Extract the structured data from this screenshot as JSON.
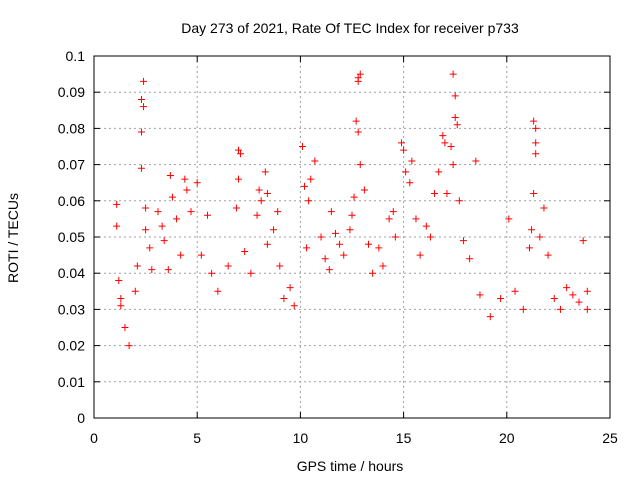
{
  "chart_data": {
    "type": "scatter",
    "title": "Day 273 of 2021, Rate Of TEC Index for receiver p733",
    "xlabel": "GPS time / hours",
    "ylabel": "ROTI / TECUs",
    "xlim": [
      0,
      25
    ],
    "ylim": [
      0,
      0.1
    ],
    "xticks": [
      "0",
      "5",
      "10",
      "15",
      "20",
      "25"
    ],
    "yticks": [
      "0",
      "0.01",
      "0.02",
      "0.03",
      "0.04",
      "0.05",
      "0.06",
      "0.07",
      "0.08",
      "0.09",
      "0.1"
    ],
    "grid": true,
    "marker": "+",
    "series": [
      {
        "color": "#ff0000",
        "points": [
          [
            1.1,
            0.059
          ],
          [
            1.1,
            0.053
          ],
          [
            1.2,
            0.038
          ],
          [
            1.3,
            0.033
          ],
          [
            1.3,
            0.031
          ],
          [
            1.5,
            0.025
          ],
          [
            1.7,
            0.02
          ],
          [
            2.0,
            0.035
          ],
          [
            2.1,
            0.042
          ],
          [
            2.3,
            0.079
          ],
          [
            2.3,
            0.088
          ],
          [
            2.4,
            0.093
          ],
          [
            2.4,
            0.086
          ],
          [
            2.3,
            0.069
          ],
          [
            2.5,
            0.058
          ],
          [
            2.5,
            0.052
          ],
          [
            2.7,
            0.047
          ],
          [
            2.8,
            0.041
          ],
          [
            3.1,
            0.057
          ],
          [
            3.3,
            0.053
          ],
          [
            3.4,
            0.049
          ],
          [
            3.6,
            0.041
          ],
          [
            3.7,
            0.067
          ],
          [
            3.8,
            0.061
          ],
          [
            4.0,
            0.055
          ],
          [
            4.2,
            0.045
          ],
          [
            4.4,
            0.066
          ],
          [
            4.5,
            0.063
          ],
          [
            4.7,
            0.057
          ],
          [
            5.0,
            0.065
          ],
          [
            5.2,
            0.045
          ],
          [
            5.5,
            0.056
          ],
          [
            5.7,
            0.04
          ],
          [
            6.0,
            0.035
          ],
          [
            6.5,
            0.042
          ],
          [
            6.9,
            0.058
          ],
          [
            7.0,
            0.066
          ],
          [
            7.0,
            0.074
          ],
          [
            7.1,
            0.073
          ],
          [
            7.3,
            0.046
          ],
          [
            7.6,
            0.04
          ],
          [
            7.9,
            0.056
          ],
          [
            8.0,
            0.063
          ],
          [
            8.1,
            0.06
          ],
          [
            8.3,
            0.068
          ],
          [
            8.4,
            0.062
          ],
          [
            8.4,
            0.048
          ],
          [
            8.7,
            0.052
          ],
          [
            8.9,
            0.057
          ],
          [
            9.0,
            0.042
          ],
          [
            9.2,
            0.033
          ],
          [
            9.5,
            0.036
          ],
          [
            9.7,
            0.031
          ],
          [
            10.1,
            0.075
          ],
          [
            10.2,
            0.064
          ],
          [
            10.4,
            0.06
          ],
          [
            10.5,
            0.066
          ],
          [
            10.7,
            0.071
          ],
          [
            10.3,
            0.047
          ],
          [
            11.0,
            0.05
          ],
          [
            11.2,
            0.044
          ],
          [
            11.4,
            0.041
          ],
          [
            11.5,
            0.057
          ],
          [
            11.7,
            0.051
          ],
          [
            11.9,
            0.048
          ],
          [
            12.1,
            0.045
          ],
          [
            12.4,
            0.052
          ],
          [
            12.5,
            0.056
          ],
          [
            12.6,
            0.061
          ],
          [
            12.8,
            0.094
          ],
          [
            12.9,
            0.095
          ],
          [
            12.8,
            0.093
          ],
          [
            12.7,
            0.082
          ],
          [
            12.8,
            0.079
          ],
          [
            12.9,
            0.07
          ],
          [
            13.1,
            0.063
          ],
          [
            13.3,
            0.048
          ],
          [
            13.5,
            0.04
          ],
          [
            13.8,
            0.047
          ],
          [
            14.0,
            0.042
          ],
          [
            14.3,
            0.055
          ],
          [
            14.5,
            0.057
          ],
          [
            14.6,
            0.05
          ],
          [
            14.9,
            0.076
          ],
          [
            15.0,
            0.074
          ],
          [
            15.1,
            0.068
          ],
          [
            15.3,
            0.065
          ],
          [
            15.4,
            0.071
          ],
          [
            15.6,
            0.055
          ],
          [
            15.8,
            0.045
          ],
          [
            16.1,
            0.053
          ],
          [
            16.3,
            0.05
          ],
          [
            16.5,
            0.062
          ],
          [
            16.7,
            0.068
          ],
          [
            16.9,
            0.078
          ],
          [
            17.0,
            0.076
          ],
          [
            17.1,
            0.062
          ],
          [
            17.3,
            0.075
          ],
          [
            17.4,
            0.095
          ],
          [
            17.5,
            0.089
          ],
          [
            17.5,
            0.083
          ],
          [
            17.6,
            0.081
          ],
          [
            17.4,
            0.07
          ],
          [
            17.7,
            0.06
          ],
          [
            17.9,
            0.049
          ],
          [
            18.2,
            0.044
          ],
          [
            18.5,
            0.071
          ],
          [
            18.7,
            0.034
          ],
          [
            19.2,
            0.028
          ],
          [
            19.7,
            0.033
          ],
          [
            20.1,
            0.055
          ],
          [
            20.4,
            0.035
          ],
          [
            20.8,
            0.03
          ],
          [
            21.1,
            0.047
          ],
          [
            21.2,
            0.052
          ],
          [
            21.3,
            0.062
          ],
          [
            21.3,
            0.082
          ],
          [
            21.4,
            0.08
          ],
          [
            21.4,
            0.076
          ],
          [
            21.4,
            0.073
          ],
          [
            21.6,
            0.05
          ],
          [
            21.8,
            0.058
          ],
          [
            22.0,
            0.045
          ],
          [
            22.3,
            0.033
          ],
          [
            22.6,
            0.03
          ],
          [
            22.9,
            0.036
          ],
          [
            23.2,
            0.034
          ],
          [
            23.5,
            0.032
          ],
          [
            23.7,
            0.049
          ],
          [
            23.9,
            0.035
          ],
          [
            23.9,
            0.03
          ]
        ]
      }
    ]
  }
}
